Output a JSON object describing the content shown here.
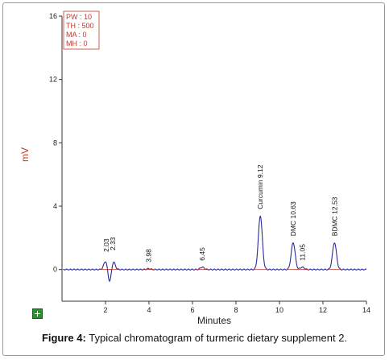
{
  "caption": {
    "label": "Figure 4:",
    "text": "Typical chromatogram of turmeric dietary supplement 2."
  },
  "icons": {
    "corner": "move-cross-icon"
  },
  "colors": {
    "signal": "#2a2a9a",
    "marker": "#c0392b",
    "axis": "#333333",
    "ylabel": "#c0392b",
    "infobox": "#c0392b"
  },
  "chart_data": {
    "type": "line",
    "xlabel": "Minutes",
    "ylabel": "mV",
    "xlim": [
      0,
      14
    ],
    "ylim": [
      -2,
      16
    ],
    "x_ticks": [
      2,
      4,
      6,
      8,
      10,
      12,
      14
    ],
    "y_ticks": [
      0,
      4,
      8,
      12,
      16
    ],
    "x_tick_labels": [
      "2",
      "4",
      "6",
      "8",
      "10",
      "12",
      "14"
    ],
    "y_tick_labels": [
      "0",
      "4",
      "8",
      "12",
      "16"
    ],
    "grid": false,
    "info_box": [
      "PW : 10",
      "TH : 500",
      "MA : 0",
      "MH : 0"
    ],
    "peaks": [
      {
        "label": "2.03",
        "x": 2.03,
        "height": 0.7
      },
      {
        "label": "2.33",
        "x": 2.33,
        "height": 0.8
      },
      {
        "label": "3.98",
        "x": 3.98,
        "height": 0.05
      },
      {
        "label": "6.45",
        "x": 6.45,
        "height": 0.15
      },
      {
        "label": "Curcumin 9.12",
        "x": 9.12,
        "height": 3.4
      },
      {
        "label": "DMC 10.63",
        "x": 10.63,
        "height": 1.7
      },
      {
        "label": "11.05",
        "x": 11.05,
        "height": 0.15
      },
      {
        "label": "BDMC 12.53",
        "x": 12.53,
        "height": 1.7
      }
    ]
  }
}
